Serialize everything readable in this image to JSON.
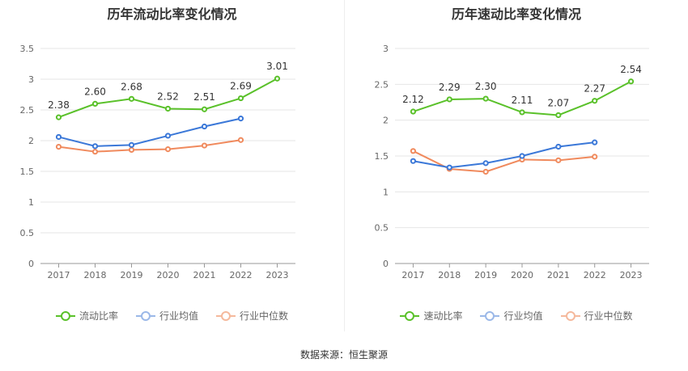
{
  "source": "数据来源：恒生聚源",
  "charts": [
    {
      "title": "历年流动比率变化情况",
      "legend": [
        "流动比率",
        "行业均值",
        "行业中位数"
      ]
    },
    {
      "title": "历年速动比率变化情况",
      "legend": [
        "速动比率",
        "行业均值",
        "行业中位数"
      ]
    }
  ],
  "chart_data": [
    {
      "type": "line",
      "title": "历年流动比率变化情况",
      "x": [
        "2017",
        "2018",
        "2019",
        "2020",
        "2021",
        "2022",
        "2023"
      ],
      "ylim": [
        0,
        3.5
      ],
      "yticks": [
        "0",
        "0.5",
        "1",
        "1.5",
        "2",
        "2.5",
        "3",
        "3.5"
      ],
      "grid": true,
      "legend_position": "bottom",
      "series": [
        {
          "name": "流动比率",
          "color": "#5ac12a",
          "values": [
            2.38,
            2.6,
            2.68,
            2.52,
            2.51,
            2.69,
            3.01
          ],
          "labels": [
            "2.38",
            "2.60",
            "2.68",
            "2.52",
            "2.51",
            "2.69",
            "3.01"
          ]
        },
        {
          "name": "行业均值",
          "color": "#3b78d8",
          "values": [
            2.06,
            1.91,
            1.93,
            2.08,
            2.23,
            2.36,
            null
          ]
        },
        {
          "name": "行业中位数",
          "color": "#f08a5d",
          "values": [
            1.9,
            1.82,
            1.85,
            1.86,
            1.92,
            2.01,
            null
          ]
        }
      ]
    },
    {
      "type": "line",
      "title": "历年速动比率变化情况",
      "x": [
        "2017",
        "2018",
        "2019",
        "2020",
        "2021",
        "2022",
        "2023"
      ],
      "ylim": [
        0,
        3
      ],
      "yticks": [
        "0",
        "0.5",
        "1",
        "1.5",
        "2",
        "2.5",
        "3"
      ],
      "grid": true,
      "legend_position": "bottom",
      "series": [
        {
          "name": "速动比率",
          "color": "#5ac12a",
          "values": [
            2.12,
            2.29,
            2.3,
            2.11,
            2.07,
            2.27,
            2.54
          ],
          "labels": [
            "2.12",
            "2.29",
            "2.30",
            "2.11",
            "2.07",
            "2.27",
            "2.54"
          ]
        },
        {
          "name": "行业均值",
          "color": "#3b78d8",
          "values": [
            1.43,
            1.34,
            1.4,
            1.5,
            1.63,
            1.69,
            null
          ]
        },
        {
          "name": "行业中位数",
          "color": "#f08a5d",
          "values": [
            1.57,
            1.32,
            1.28,
            1.45,
            1.44,
            1.49,
            null
          ]
        }
      ]
    }
  ]
}
